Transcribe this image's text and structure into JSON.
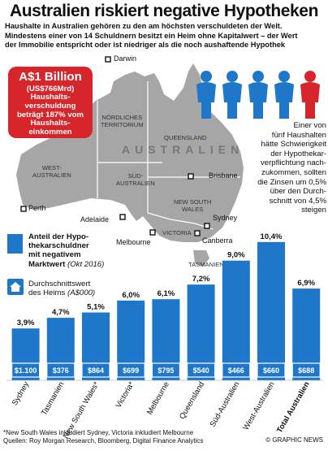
{
  "header": {
    "title": "Australien riskiert negative Hypotheken",
    "subtitle_line1": "Haushalte in Australien gehören zu den am höchsten verschuldeten der Welt.",
    "subtitle_line2": "Mindestens einer von 14 Schuldnern besitzt ein Heim ohne Kapitalwert –  der Wert",
    "subtitle_line3": "der Immobilie entspricht oder ist niedriger als die noch aushaftende Hypothek"
  },
  "callout": {
    "big": "A$1 Billion",
    "small": "(US$766Mrd)",
    "line1": "Haushalts-",
    "line2": "verschuldung",
    "line3": "beträgt 187% vom",
    "line4": "Haushalts-",
    "line5": "einkommen",
    "color": "#d6262c"
  },
  "people_note": {
    "lines": [
      "Einer von",
      "fünf Haushalten",
      "hätte Schwierigkeit",
      "der Hypothekar-",
      "verpflichtung nach-",
      "zukommen, sollten",
      "die Zinsen um 0,5%",
      "über den Durch-",
      "schnitt von 4,5%",
      "steigen"
    ],
    "colors": {
      "blue": "#1f77c9",
      "red": "#d6262c"
    }
  },
  "map": {
    "country_label": "AUSTRALIEN",
    "cities": {
      "darwin": "Darwin",
      "brisbane": "Brisbane",
      "perth": "Perth",
      "adelaide": "Adelaide",
      "sydney": "Sydney",
      "melbourne": "Melbourne",
      "canberra": "Canberra"
    },
    "regions": {
      "nt1": "NÖRDLICHES",
      "nt2": "TERRITORIUM",
      "qld": "QUEENSLAND",
      "wa1": "WEST-",
      "wa2": "AUSTRALIEN",
      "sa1": "SÜD-",
      "sa2": "AUSTRALIEN",
      "nsw1": "NEW SOUTH",
      "nsw2": "WALES",
      "vic": "VICTORIA",
      "tas": "TASMANIEN"
    },
    "colors": {
      "land": "#a6a6a6",
      "border": "#ffffff"
    }
  },
  "legend": {
    "bar_line1": "Anteil der Hypo-",
    "bar_line2": "thekarschuldner",
    "bar_line3": "mit negativem",
    "bar_line4": "Marktwert",
    "bar_note": "(Okt 2016)",
    "home_line1": "Durchschnittswert",
    "home_line2": "des Heims",
    "home_unit": "(A$000)"
  },
  "chart_data": {
    "type": "bar",
    "categories": [
      "Sydney",
      "Tasmanien",
      "New South Wales*",
      "Victoria*",
      "Melbourne",
      "Queensland",
      "Süd-Australien",
      "West-Australien",
      "Total Australien"
    ],
    "values": [
      3.9,
      4.7,
      5.1,
      6.0,
      6.1,
      7.2,
      9.0,
      10.4,
      6.9
    ],
    "value_labels": [
      "3,9%",
      "4,7%",
      "5,1%",
      "6,0%",
      "6,1%",
      "7,2%",
      "9,0%",
      "10,4%",
      "6,9%"
    ],
    "home_values": [
      "$1.100",
      "$376",
      "$864",
      "$699",
      "$795",
      "$540",
      "$466",
      "$660",
      "$688"
    ],
    "ylim": [
      0,
      11
    ],
    "grid": false,
    "colors": {
      "bar": "#1f77c9",
      "home_box": "#1f77c9",
      "highlight_label": "#1f77c9"
    }
  },
  "footer": {
    "note": "*New South Wales inkludiert Sydney, Victoria inkludiert Melbourne",
    "sources": "Quellen: Roy Morgan Research, Bloomberg, Digital Finance Analytics",
    "credit": "© GRAPHIC NEWS"
  }
}
